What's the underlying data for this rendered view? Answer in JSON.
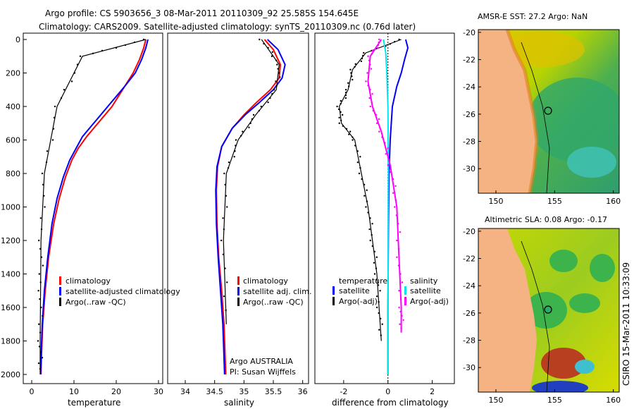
{
  "header": {
    "title_line1": "Argo profile: CS 5903656_3 08-Mar-2011 20110309_92 25.585S 154.645E",
    "title_line2": "Climatology: CARS2009. Satellite-adjusted climatology: synTS_20110309.nc (0.76d later)"
  },
  "colors": {
    "climatology": "#ff0000",
    "satellite": "#0000ff",
    "argo": "#000000",
    "salinity_diff": "#ff00ff",
    "salinity_sat": "#00e5ee",
    "land": "#f5b282"
  },
  "chart_data": [
    {
      "type": "line",
      "id": "temperature",
      "xlabel": "temperature",
      "ylabel": "",
      "xlim": [
        -2,
        31
      ],
      "ylim": [
        2000,
        0
      ],
      "xticks": [
        0,
        10,
        20,
        30
      ],
      "yticks": [
        0,
        200,
        400,
        600,
        800,
        1000,
        1200,
        1400,
        1600,
        1800,
        2000
      ],
      "legend": [
        "climatology",
        "satellite-adjusted climatology",
        "Argo(..raw -QC)"
      ],
      "series": [
        {
          "name": "climatology",
          "color": "#ff0000",
          "x": [
            27,
            26.5,
            25.5,
            24,
            22,
            20.5,
            19,
            17,
            15,
            13,
            11,
            9.5,
            8,
            6.5,
            5.2,
            4,
            3.2,
            2.6,
            2.3,
            2.2
          ],
          "y": [
            0,
            50,
            120,
            200,
            280,
            340,
            400,
            460,
            520,
            580,
            650,
            720,
            820,
            950,
            1100,
            1300,
            1500,
            1700,
            1900,
            2000
          ]
        },
        {
          "name": "satellite-adjusted climatology",
          "color": "#0000ff",
          "x": [
            27.5,
            27,
            26,
            24.5,
            22,
            20,
            18,
            16,
            14,
            12,
            10.5,
            9,
            7.5,
            6,
            4.8,
            3.8,
            3,
            2.5,
            2.2,
            2.1
          ],
          "y": [
            0,
            50,
            120,
            200,
            280,
            340,
            400,
            460,
            520,
            580,
            650,
            720,
            820,
            950,
            1100,
            1300,
            1500,
            1700,
            1900,
            2000
          ]
        },
        {
          "name": "Argo(..raw -QC)",
          "color": "#000000",
          "x": [
            27,
            12,
            6,
            3,
            2.2,
            2.1,
            2.0,
            2.0
          ],
          "y": [
            0,
            100,
            400,
            800,
            1200,
            1500,
            1800,
            2000
          ]
        }
      ]
    },
    {
      "type": "line",
      "id": "salinity",
      "xlabel": "salinity",
      "xlim": [
        33.7,
        36.1
      ],
      "ylim": [
        2000,
        0
      ],
      "xticks": [
        34,
        34.5,
        35,
        35.5,
        36
      ],
      "legend": [
        "climatology",
        "satellite adj. clim.",
        "Argo(..raw -QC)"
      ],
      "annotation": [
        "Argo AUSTRALIA",
        "PI: Susan Wijffels"
      ],
      "series": [
        {
          "name": "climatology",
          "color": "#ff0000",
          "x": [
            35.35,
            35.5,
            35.62,
            35.6,
            35.45,
            35.2,
            35.0,
            34.8,
            34.62,
            34.55,
            34.53,
            34.54,
            34.57,
            34.62,
            34.66,
            34.68,
            34.69
          ],
          "y": [
            0,
            60,
            150,
            230,
            300,
            380,
            450,
            530,
            640,
            760,
            900,
            1100,
            1300,
            1500,
            1700,
            1900,
            2000
          ]
        },
        {
          "name": "satellite adj. clim.",
          "color": "#0000ff",
          "x": [
            35.4,
            35.58,
            35.7,
            35.65,
            35.5,
            35.25,
            35.02,
            34.8,
            34.62,
            34.54,
            34.52,
            34.53,
            34.56,
            34.6,
            34.64,
            34.66,
            34.67
          ],
          "y": [
            0,
            60,
            150,
            230,
            300,
            380,
            450,
            530,
            640,
            760,
            900,
            1100,
            1300,
            1500,
            1700,
            1900,
            2000
          ]
        },
        {
          "name": "Argo(..raw -QC)",
          "color": "#000000",
          "x": [
            35.3,
            35.6,
            35.55,
            35.2,
            34.9,
            34.7,
            34.65,
            34.7
          ],
          "y": [
            0,
            150,
            300,
            450,
            600,
            800,
            1200,
            1700
          ]
        }
      ]
    },
    {
      "type": "line",
      "id": "difference",
      "xlabel": "difference from climatology",
      "xlim": [
        -3.3,
        3.0
      ],
      "ylim": [
        2000,
        0
      ],
      "xticks": [
        -2,
        0,
        2
      ],
      "legend": [
        "temperature",
        "satellite",
        "Argo(-adj)",
        "salinity",
        "satellite",
        "Argo(-adj)"
      ],
      "series": [
        {
          "name": "temperature satellite",
          "color": "#0000ff",
          "x": [
            0.8,
            0.9,
            0.75,
            0.6,
            0.4,
            0.2,
            0.1,
            0.05,
            0.02,
            0,
            0
          ],
          "y": [
            0,
            50,
            120,
            200,
            280,
            400,
            600,
            800,
            1200,
            1600,
            2000
          ]
        },
        {
          "name": "temperature Argo(-adj)",
          "color": "#000000",
          "x": [
            0.6,
            -1.0,
            -1.6,
            -1.8,
            -2.2,
            -2.1,
            -1.5,
            -1.2,
            -0.9,
            -0.7,
            -0.5,
            -0.4,
            -0.3
          ],
          "y": [
            0,
            80,
            180,
            300,
            400,
            500,
            600,
            800,
            1000,
            1200,
            1400,
            1600,
            1800
          ]
        },
        {
          "name": "salinity satellite",
          "color": "#00e5ee",
          "x": [
            -0.2,
            -0.1,
            -0.05,
            0,
            0.02,
            0.01,
            0
          ],
          "y": [
            0,
            80,
            200,
            400,
            800,
            1400,
            2000
          ]
        },
        {
          "name": "salinity Argo(-adj)",
          "color": "#ff00ff",
          "x": [
            -0.3,
            -0.8,
            -0.9,
            -0.7,
            -0.3,
            0.1,
            0.4,
            0.5,
            0.6,
            0.6
          ],
          "y": [
            0,
            100,
            250,
            400,
            550,
            750,
            1000,
            1300,
            1600,
            1750
          ]
        }
      ]
    },
    {
      "type": "heatmap",
      "id": "sst-map",
      "title": "AMSR-E SST: 27.2 Argo: NaN",
      "xlim": [
        148.5,
        160.5
      ],
      "ylim": [
        -31.8,
        -19.8
      ],
      "xticks": [
        150,
        155,
        160
      ],
      "yticks": [
        -20,
        -22,
        -24,
        -26,
        -28,
        -30
      ],
      "marker": [
        154.645,
        -25.585
      ]
    },
    {
      "type": "heatmap",
      "id": "sla-map",
      "title": "Altimetric SLA: 0.08 Argo: -0.17",
      "xlim": [
        148.5,
        160.5
      ],
      "ylim": [
        -31.8,
        -19.8
      ],
      "xticks": [
        150,
        155,
        160
      ],
      "yticks": [
        -20,
        -22,
        -24,
        -26,
        -28,
        -30
      ],
      "marker": [
        154.645,
        -25.585
      ]
    }
  ],
  "side_label": "CSIRO 15-Mar-2011 10:33:09"
}
